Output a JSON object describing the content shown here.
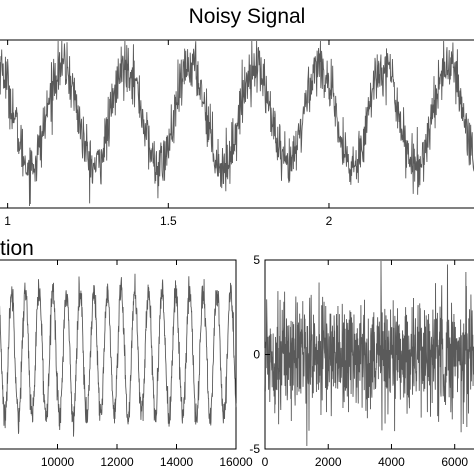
{
  "chart_data": [
    {
      "id": "top",
      "type": "line",
      "title": "Noisy Signal",
      "xlabel": "",
      "ylabel": "",
      "xlim": [
        0.97,
        2.47
      ],
      "ylim": [
        -1.7,
        1.4
      ],
      "xticks": [
        1,
        1.5,
        2
      ],
      "xtick_labels": [
        "1",
        "1.5",
        "2"
      ],
      "grid": false,
      "series": [
        {
          "kind": "noisy_sine",
          "frequency": 5,
          "amplitude": 0.95,
          "noise_std": 0.25,
          "samples": 1300
        }
      ]
    },
    {
      "id": "bottom-left",
      "type": "line",
      "title": "tion",
      "xlabel": "",
      "ylabel": "",
      "xlim": [
        8000,
        16000
      ],
      "ylim": [
        -1.5,
        1.5
      ],
      "xticks": [
        10000,
        12000,
        14000,
        16000
      ],
      "xtick_labels": [
        "10000",
        "12000",
        "14000",
        "16000"
      ],
      "grid": false,
      "series": [
        {
          "kind": "noisy_sine",
          "period_samples": 460,
          "amplitude": 1.0,
          "noise_std": 0.12,
          "samples": 1000
        }
      ]
    },
    {
      "id": "bottom-right",
      "type": "line",
      "title": "",
      "xlabel": "",
      "ylabel": "",
      "xlim": [
        0,
        6800
      ],
      "ylim": [
        -5,
        5
      ],
      "xticks": [
        0,
        2000,
        4000,
        6000
      ],
      "xtick_labels": [
        "0",
        "2000",
        "4000",
        "6000"
      ],
      "yticks": [
        5,
        0,
        -5
      ],
      "ytick_labels": [
        "5",
        "0",
        "-5"
      ],
      "grid": false,
      "series": [
        {
          "kind": "noise",
          "noise_std": 1.5,
          "samples": 900
        }
      ]
    }
  ]
}
